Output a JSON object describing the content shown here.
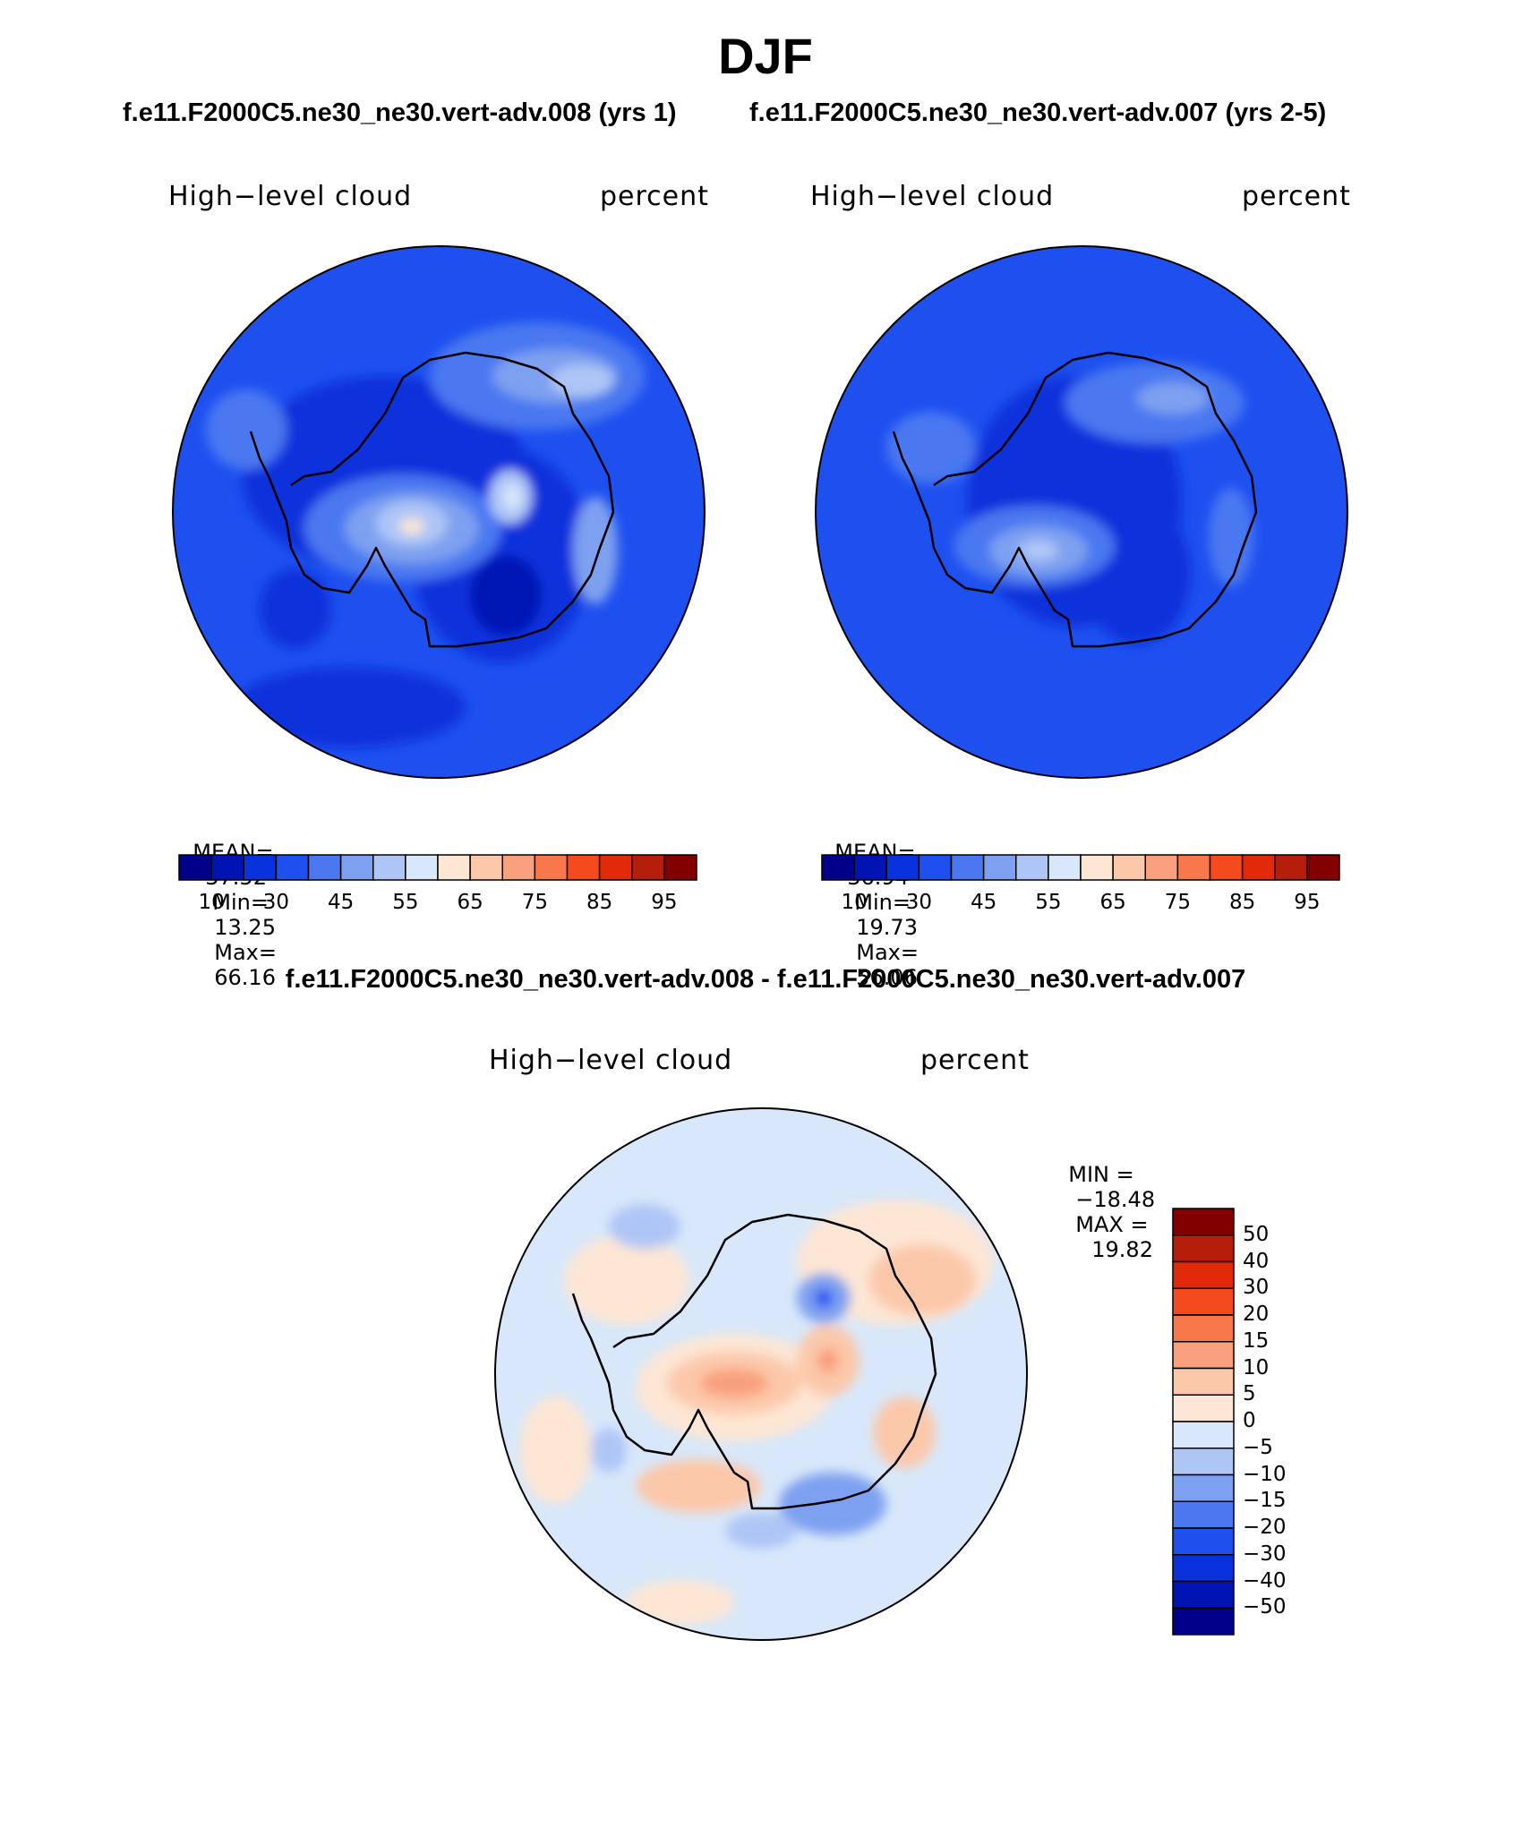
{
  "season": "DJF",
  "case_titles": {
    "left": "f.e11.F2000C5.ne30_ne30.vert-adv.008 (yrs 1)",
    "right": "f.e11.F2000C5.ne30_ne30.vert-adv.007 (yrs 2-5)"
  },
  "diff_title": "f.e11.F2000C5.ne30_ne30.vert-adv.008 - f.e11.F2000C5.ne30_ne30.vert-adv.007",
  "panels": [
    {
      "variable": "High−level cloud",
      "units": "percent",
      "mean_label": "MEAN=",
      "mean": "37.52",
      "min_label": "Min=",
      "min": "13.25",
      "max_label": "Max=",
      "max": "66.16"
    },
    {
      "variable": "High−level cloud",
      "units": "percent",
      "mean_label": "MEAN=",
      "mean": "36.94",
      "min_label": "Min=",
      "min": "19.73",
      "max_label": "Max=",
      "max": "56.06"
    }
  ],
  "diff_panel": {
    "variable": "High−level cloud",
    "units": "percent",
    "min_label": "MIN =",
    "min": "−18.48",
    "max_label": "MAX =",
    "max": "19.82"
  },
  "colorbar_abs": {
    "ticks": [
      "10",
      "30",
      "45",
      "55",
      "65",
      "75",
      "85",
      "95"
    ],
    "colors": [
      "#00008a",
      "#0014b4",
      "#0a32dc",
      "#1e50f0",
      "#4a78f0",
      "#7ea0f0",
      "#aec6f6",
      "#d8e8fa",
      "#fde6d4",
      "#fcc8aa",
      "#f9a07c",
      "#f8784c",
      "#f44a1e",
      "#e02a0a",
      "#b41e0a",
      "#820000"
    ]
  },
  "colorbar_diff": {
    "ticks": [
      "50",
      "40",
      "30",
      "20",
      "15",
      "10",
      "5",
      "0",
      "−5",
      "−10",
      "−15",
      "−20",
      "−30",
      "−40",
      "−50"
    ],
    "colors": [
      "#820000",
      "#b41e0a",
      "#e02a0a",
      "#f44a1e",
      "#f8784c",
      "#f9a07c",
      "#fcc8aa",
      "#fde6d4",
      "#d8e8fa",
      "#aec6f6",
      "#7ea0f0",
      "#4a78f0",
      "#1e50f0",
      "#0a32dc",
      "#0014b4",
      "#00008a"
    ]
  }
}
